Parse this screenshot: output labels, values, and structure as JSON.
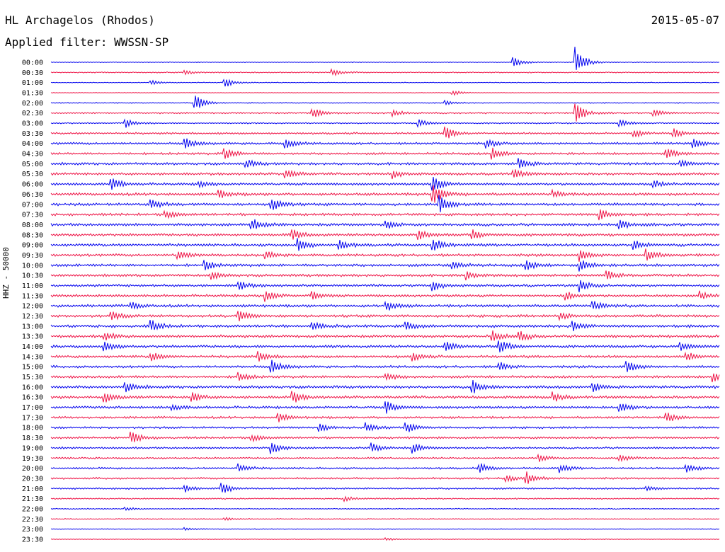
{
  "header": {
    "station": "HL Archagelos (Rhodos)",
    "date": "2015-05-07",
    "filter": "Applied filter: WWSSN-SP"
  },
  "colors": {
    "even_row": "#0000ee",
    "odd_row": "#ee1144",
    "text": "#000000"
  },
  "chart_data": {
    "type": "line",
    "title": "HL Archagelos (Rhodos)",
    "subtitle": "Applied filter: WWSSN-SP",
    "ylabel": "HHZ - 50000",
    "xlabel": "",
    "grid": false,
    "row_labels": [
      "00:00",
      "00:30",
      "01:00",
      "01:30",
      "02:00",
      "02:30",
      "03:00",
      "03:30",
      "04:00",
      "04:30",
      "05:00",
      "05:30",
      "06:00",
      "06:30",
      "07:00",
      "07:30",
      "08:00",
      "08:30",
      "09:00",
      "09:30",
      "10:00",
      "10:30",
      "11:00",
      "11:30",
      "12:00",
      "12:30",
      "13:00",
      "13:30",
      "14:00",
      "14:30",
      "15:00",
      "15:30",
      "16:00",
      "16:30",
      "17:00",
      "17:30",
      "18:00",
      "18:30",
      "19:00",
      "19:30",
      "20:00",
      "20:30",
      "21:00",
      "21:30",
      "22:00",
      "22:30",
      "23:00",
      "23:30"
    ],
    "row_noise": [
      0.4,
      0.6,
      0.4,
      0.3,
      0.5,
      0.8,
      0.7,
      1.0,
      1.2,
      1.2,
      1.3,
      1.3,
      1.3,
      1.4,
      1.4,
      1.3,
      1.4,
      1.4,
      1.4,
      1.4,
      1.4,
      1.3,
      1.3,
      1.3,
      1.4,
      1.4,
      1.4,
      1.4,
      1.4,
      1.3,
      1.3,
      1.3,
      1.4,
      1.4,
      1.3,
      1.2,
      1.1,
      1.1,
      1.0,
      0.9,
      1.0,
      1.0,
      0.9,
      0.7,
      0.5,
      0.5,
      0.4,
      0.4
    ],
    "events": [
      {
        "row": 0,
        "t": 0.69,
        "a": 9
      },
      {
        "row": 0,
        "t": 0.784,
        "a": 22
      },
      {
        "row": 1,
        "t": 0.42,
        "a": 5
      },
      {
        "row": 1,
        "t": 0.2,
        "a": 3
      },
      {
        "row": 2,
        "t": 0.26,
        "a": 7
      },
      {
        "row": 2,
        "t": 0.15,
        "a": 3
      },
      {
        "row": 3,
        "t": 0.6,
        "a": 4
      },
      {
        "row": 4,
        "t": 0.215,
        "a": 12
      },
      {
        "row": 4,
        "t": 0.59,
        "a": 3
      },
      {
        "row": 5,
        "t": 0.784,
        "a": 14
      },
      {
        "row": 5,
        "t": 0.39,
        "a": 8
      },
      {
        "row": 5,
        "t": 0.51,
        "a": 5
      },
      {
        "row": 5,
        "t": 0.9,
        "a": 5
      },
      {
        "row": 6,
        "t": 0.11,
        "a": 7
      },
      {
        "row": 6,
        "t": 0.55,
        "a": 5
      },
      {
        "row": 6,
        "t": 0.85,
        "a": 5
      },
      {
        "row": 7,
        "t": 0.59,
        "a": 9
      },
      {
        "row": 7,
        "t": 0.87,
        "a": 6
      },
      {
        "row": 7,
        "t": 0.93,
        "a": 7
      },
      {
        "row": 8,
        "t": 0.2,
        "a": 9
      },
      {
        "row": 8,
        "t": 0.35,
        "a": 7
      },
      {
        "row": 8,
        "t": 0.65,
        "a": 6
      },
      {
        "row": 8,
        "t": 0.96,
        "a": 6
      },
      {
        "row": 9,
        "t": 0.26,
        "a": 8
      },
      {
        "row": 9,
        "t": 0.66,
        "a": 8
      },
      {
        "row": 9,
        "t": 0.92,
        "a": 8
      },
      {
        "row": 10,
        "t": 0.29,
        "a": 6
      },
      {
        "row": 10,
        "t": 0.7,
        "a": 8
      },
      {
        "row": 10,
        "t": 0.94,
        "a": 6
      },
      {
        "row": 11,
        "t": 0.35,
        "a": 8
      },
      {
        "row": 11,
        "t": 0.51,
        "a": 6
      },
      {
        "row": 11,
        "t": 0.69,
        "a": 8
      },
      {
        "row": 12,
        "t": 0.09,
        "a": 9
      },
      {
        "row": 12,
        "t": 0.57,
        "a": 12
      },
      {
        "row": 12,
        "t": 0.22,
        "a": 5
      },
      {
        "row": 12,
        "t": 0.9,
        "a": 6
      },
      {
        "row": 13,
        "t": 0.57,
        "a": 16
      },
      {
        "row": 13,
        "t": 0.25,
        "a": 6
      },
      {
        "row": 13,
        "t": 0.75,
        "a": 5
      },
      {
        "row": 14,
        "t": 0.15,
        "a": 7
      },
      {
        "row": 14,
        "t": 0.33,
        "a": 10
      },
      {
        "row": 14,
        "t": 0.58,
        "a": 12
      },
      {
        "row": 15,
        "t": 0.17,
        "a": 6
      },
      {
        "row": 15,
        "t": 0.82,
        "a": 8
      },
      {
        "row": 16,
        "t": 0.3,
        "a": 9
      },
      {
        "row": 16,
        "t": 0.5,
        "a": 6
      },
      {
        "row": 16,
        "t": 0.85,
        "a": 6
      },
      {
        "row": 17,
        "t": 0.36,
        "a": 8
      },
      {
        "row": 17,
        "t": 0.55,
        "a": 7
      },
      {
        "row": 17,
        "t": 0.63,
        "a": 7
      },
      {
        "row": 18,
        "t": 0.37,
        "a": 9
      },
      {
        "row": 18,
        "t": 0.43,
        "a": 7
      },
      {
        "row": 18,
        "t": 0.57,
        "a": 10
      },
      {
        "row": 18,
        "t": 0.87,
        "a": 7
      },
      {
        "row": 19,
        "t": 0.19,
        "a": 7
      },
      {
        "row": 19,
        "t": 0.32,
        "a": 6
      },
      {
        "row": 19,
        "t": 0.79,
        "a": 8
      },
      {
        "row": 19,
        "t": 0.89,
        "a": 8
      },
      {
        "row": 20,
        "t": 0.23,
        "a": 7
      },
      {
        "row": 20,
        "t": 0.6,
        "a": 6
      },
      {
        "row": 20,
        "t": 0.71,
        "a": 8
      },
      {
        "row": 20,
        "t": 0.79,
        "a": 9
      },
      {
        "row": 21,
        "t": 0.24,
        "a": 5
      },
      {
        "row": 21,
        "t": 0.62,
        "a": 6
      },
      {
        "row": 21,
        "t": 0.83,
        "a": 7
      },
      {
        "row": 22,
        "t": 0.28,
        "a": 7
      },
      {
        "row": 22,
        "t": 0.57,
        "a": 7
      },
      {
        "row": 22,
        "t": 0.79,
        "a": 9
      },
      {
        "row": 23,
        "t": 0.32,
        "a": 9
      },
      {
        "row": 23,
        "t": 0.39,
        "a": 6
      },
      {
        "row": 23,
        "t": 0.77,
        "a": 6
      },
      {
        "row": 23,
        "t": 0.97,
        "a": 6
      },
      {
        "row": 24,
        "t": 0.12,
        "a": 5
      },
      {
        "row": 24,
        "t": 0.5,
        "a": 8
      },
      {
        "row": 24,
        "t": 0.81,
        "a": 7
      },
      {
        "row": 25,
        "t": 0.09,
        "a": 6
      },
      {
        "row": 25,
        "t": 0.28,
        "a": 8
      },
      {
        "row": 25,
        "t": 0.76,
        "a": 6
      },
      {
        "row": 26,
        "t": 0.15,
        "a": 8
      },
      {
        "row": 26,
        "t": 0.39,
        "a": 7
      },
      {
        "row": 26,
        "t": 0.53,
        "a": 7
      },
      {
        "row": 26,
        "t": 0.78,
        "a": 7
      },
      {
        "row": 27,
        "t": 0.08,
        "a": 6
      },
      {
        "row": 27,
        "t": 0.66,
        "a": 8
      },
      {
        "row": 27,
        "t": 0.7,
        "a": 7
      },
      {
        "row": 28,
        "t": 0.08,
        "a": 7
      },
      {
        "row": 28,
        "t": 0.59,
        "a": 8
      },
      {
        "row": 28,
        "t": 0.67,
        "a": 10
      },
      {
        "row": 28,
        "t": 0.94,
        "a": 7
      },
      {
        "row": 29,
        "t": 0.15,
        "a": 6
      },
      {
        "row": 29,
        "t": 0.31,
        "a": 7
      },
      {
        "row": 29,
        "t": 0.54,
        "a": 6
      },
      {
        "row": 29,
        "t": 0.95,
        "a": 6
      },
      {
        "row": 30,
        "t": 0.33,
        "a": 10
      },
      {
        "row": 30,
        "t": 0.67,
        "a": 6
      },
      {
        "row": 30,
        "t": 0.86,
        "a": 9
      },
      {
        "row": 31,
        "t": 0.28,
        "a": 7
      },
      {
        "row": 31,
        "t": 0.5,
        "a": 6
      },
      {
        "row": 31,
        "t": 0.99,
        "a": 7
      },
      {
        "row": 32,
        "t": 0.11,
        "a": 8
      },
      {
        "row": 32,
        "t": 0.63,
        "a": 9
      },
      {
        "row": 32,
        "t": 0.81,
        "a": 6
      },
      {
        "row": 33,
        "t": 0.08,
        "a": 8
      },
      {
        "row": 33,
        "t": 0.21,
        "a": 7
      },
      {
        "row": 33,
        "t": 0.36,
        "a": 9
      },
      {
        "row": 33,
        "t": 0.75,
        "a": 7
      },
      {
        "row": 34,
        "t": 0.18,
        "a": 5
      },
      {
        "row": 34,
        "t": 0.5,
        "a": 9
      },
      {
        "row": 34,
        "t": 0.85,
        "a": 8
      },
      {
        "row": 35,
        "t": 0.34,
        "a": 6
      },
      {
        "row": 35,
        "t": 0.92,
        "a": 7
      },
      {
        "row": 36,
        "t": 0.4,
        "a": 6
      },
      {
        "row": 36,
        "t": 0.47,
        "a": 7
      },
      {
        "row": 36,
        "t": 0.53,
        "a": 8
      },
      {
        "row": 37,
        "t": 0.12,
        "a": 9
      },
      {
        "row": 37,
        "t": 0.3,
        "a": 5
      },
      {
        "row": 38,
        "t": 0.33,
        "a": 8
      },
      {
        "row": 38,
        "t": 0.48,
        "a": 7
      },
      {
        "row": 38,
        "t": 0.54,
        "a": 7
      },
      {
        "row": 39,
        "t": 0.85,
        "a": 6
      },
      {
        "row": 39,
        "t": 0.73,
        "a": 5
      },
      {
        "row": 40,
        "t": 0.28,
        "a": 6
      },
      {
        "row": 40,
        "t": 0.64,
        "a": 7
      },
      {
        "row": 40,
        "t": 0.76,
        "a": 6
      },
      {
        "row": 40,
        "t": 0.95,
        "a": 7
      },
      {
        "row": 41,
        "t": 0.68,
        "a": 6
      },
      {
        "row": 41,
        "t": 0.71,
        "a": 9
      },
      {
        "row": 42,
        "t": 0.255,
        "a": 10
      },
      {
        "row": 42,
        "t": 0.2,
        "a": 5
      },
      {
        "row": 42,
        "t": 0.89,
        "a": 4
      },
      {
        "row": 43,
        "t": 0.44,
        "a": 3
      },
      {
        "row": 44,
        "t": 0.11,
        "a": 3
      },
      {
        "row": 45,
        "t": 0.26,
        "a": 2
      },
      {
        "row": 46,
        "t": 0.2,
        "a": 2
      },
      {
        "row": 47,
        "t": 0.5,
        "a": 2
      }
    ]
  }
}
